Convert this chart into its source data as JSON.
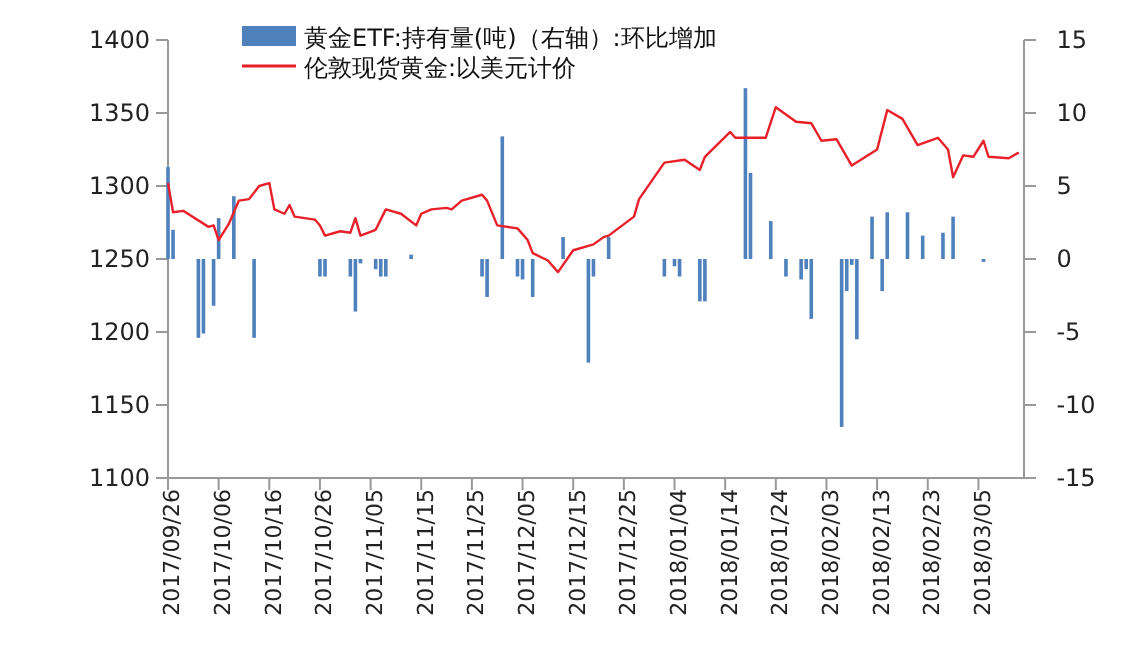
{
  "chart_data": {
    "type": "bar",
    "xlim": [
      "2017-09-26",
      "2018-03-14"
    ],
    "xticks": [
      {
        "value": "2017-09-26",
        "label": "2017/09/26"
      },
      {
        "value": "2017-10-06",
        "label": "2017/10/06"
      },
      {
        "value": "2017-10-16",
        "label": "2017/10/16"
      },
      {
        "value": "2017-10-26",
        "label": "2017/10/26"
      },
      {
        "value": "2017-11-05",
        "label": "2017/11/05"
      },
      {
        "value": "2017-11-15",
        "label": "2017/11/15"
      },
      {
        "value": "2017-11-25",
        "label": "2017/11/25"
      },
      {
        "value": "2017-12-05",
        "label": "2017/12/05"
      },
      {
        "value": "2017-12-15",
        "label": "2017/12/15"
      },
      {
        "value": "2017-12-25",
        "label": "2017/12/25"
      },
      {
        "value": "2018-01-04",
        "label": "2018/01/04"
      },
      {
        "value": "2018-01-14",
        "label": "2018/01/14"
      },
      {
        "value": "2018-01-24",
        "label": "2018/01/24"
      },
      {
        "value": "2018-02-03",
        "label": "2018/02/03"
      },
      {
        "value": "2018-02-13",
        "label": "2018/02/13"
      },
      {
        "value": "2018-02-23",
        "label": "2018/02/23"
      },
      {
        "value": "2018-03-05",
        "label": "2018/03/05"
      }
    ],
    "ylim": [
      1100,
      1400
    ],
    "yticks": [
      1100,
      1150,
      1200,
      1250,
      1300,
      1350,
      1400
    ],
    "y2lim": [
      -15,
      15
    ],
    "y2ticks": [
      -15,
      -10,
      -5,
      0,
      5,
      10,
      15
    ],
    "legend": "top",
    "series": [
      {
        "name": "黄金ETF:持有量(吨)（右轴）:环比增加",
        "axis": "y2",
        "color": "#4f81bd",
        "x": [
          "2017-09-26",
          "2017-09-27",
          "2017-10-02",
          "2017-10-03",
          "2017-10-05",
          "2017-10-06",
          "2017-10-09",
          "2017-10-13",
          "2017-10-26",
          "2017-10-27",
          "2017-11-01",
          "2017-11-02",
          "2017-11-03",
          "2017-11-06",
          "2017-11-07",
          "2017-11-08",
          "2017-11-13",
          "2017-11-27",
          "2017-11-28",
          "2017-12-01",
          "2017-12-04",
          "2017-12-05",
          "2017-12-07",
          "2017-12-13",
          "2017-12-18",
          "2017-12-19",
          "2017-12-22",
          "2018-01-02",
          "2018-01-04",
          "2018-01-05",
          "2018-01-09",
          "2018-01-10",
          "2018-01-18",
          "2018-01-19",
          "2018-01-23",
          "2018-01-26",
          "2018-01-29",
          "2018-01-30",
          "2018-01-31",
          "2018-02-06",
          "2018-02-07",
          "2018-02-08",
          "2018-02-09",
          "2018-02-12",
          "2018-02-14",
          "2018-02-15",
          "2018-02-19",
          "2018-02-22",
          "2018-02-26",
          "2018-02-28",
          "2018-03-06"
        ],
        "values": [
          6.3,
          2.0,
          -5.4,
          -5.1,
          -3.2,
          2.8,
          4.3,
          -5.4,
          -1.2,
          -1.2,
          -1.2,
          -3.6,
          -0.3,
          -0.7,
          -1.2,
          -1.2,
          0.3,
          -1.2,
          -2.6,
          8.4,
          -1.2,
          -1.4,
          -2.6,
          1.5,
          -7.1,
          -1.2,
          1.5,
          -1.2,
          -0.5,
          -1.2,
          -2.9,
          -2.9,
          11.7,
          5.9,
          2.6,
          -1.2,
          -1.4,
          -0.7,
          -4.1,
          -11.5,
          -2.2,
          -0.4,
          -5.5,
          2.9,
          -2.2,
          3.2,
          3.2,
          1.6,
          1.8,
          2.9,
          -0.2
        ]
      },
      {
        "name": "伦敦现货黄金:以美元计价",
        "type": "line",
        "color": "#e8202a",
        "x": [
          "2017-09-26",
          "2017-09-27",
          "2017-09-29",
          "2017-10-04",
          "2017-10-05",
          "2017-10-06",
          "2017-10-08",
          "2017-10-10",
          "2017-10-12",
          "2017-10-14",
          "2017-10-16",
          "2017-10-17",
          "2017-10-19",
          "2017-10-20",
          "2017-10-21",
          "2017-10-25",
          "2017-10-26",
          "2017-10-27",
          "2017-10-30",
          "2017-11-01",
          "2017-11-02",
          "2017-11-03",
          "2017-11-06",
          "2017-11-08",
          "2017-11-11",
          "2017-11-14",
          "2017-11-15",
          "2017-11-17",
          "2017-11-20",
          "2017-11-21",
          "2017-11-23",
          "2017-11-27",
          "2017-11-28",
          "2017-11-30",
          "2017-12-04",
          "2017-12-06",
          "2017-12-07",
          "2017-12-10",
          "2017-12-12",
          "2017-12-15",
          "2017-12-18",
          "2017-12-19",
          "2017-12-21",
          "2017-12-22",
          "2017-12-27",
          "2017-12-28",
          "2018-01-02",
          "2018-01-06",
          "2018-01-09",
          "2018-01-10",
          "2018-01-15",
          "2018-01-16",
          "2018-01-22",
          "2018-01-24",
          "2018-01-28",
          "2018-01-31",
          "2018-02-02",
          "2018-02-05",
          "2018-02-08",
          "2018-02-13",
          "2018-02-15",
          "2018-02-18",
          "2018-02-21",
          "2018-02-25",
          "2018-02-27",
          "2018-02-28",
          "2018-03-02",
          "2018-03-04",
          "2018-03-06",
          "2018-03-07",
          "2018-03-11",
          "2018-03-13"
        ],
        "values": [
          1302,
          1282,
          1283,
          1272,
          1273,
          1263,
          1274,
          1290,
          1291,
          1300,
          1302,
          1284,
          1281,
          1287,
          1279,
          1277,
          1273,
          1266,
          1269,
          1268,
          1278,
          1266,
          1270,
          1284,
          1281,
          1273,
          1281,
          1284,
          1285,
          1284,
          1290,
          1294,
          1290,
          1273,
          1271,
          1263,
          1254,
          1249,
          1241,
          1256,
          1259,
          1260,
          1265,
          1266,
          1279,
          1291,
          1316,
          1318,
          1311,
          1320,
          1337,
          1333,
          1333,
          1354,
          1344,
          1343,
          1331,
          1332,
          1314,
          1325,
          1352,
          1346,
          1328,
          1333,
          1325,
          1306,
          1321,
          1320,
          1331,
          1320,
          1319,
          1323
        ]
      }
    ]
  }
}
